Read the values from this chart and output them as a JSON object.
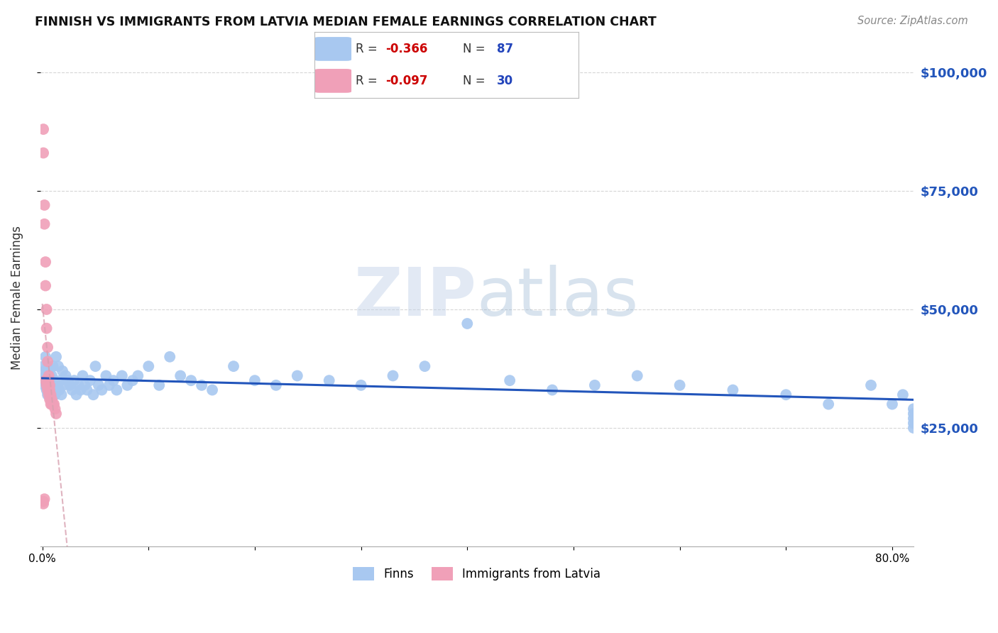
{
  "title": "FINNISH VS IMMIGRANTS FROM LATVIA MEDIAN FEMALE EARNINGS CORRELATION CHART",
  "source": "Source: ZipAtlas.com",
  "ylabel": "Median Female Earnings",
  "ylim": [
    0,
    105000
  ],
  "xlim": [
    -0.002,
    0.82
  ],
  "finns_color": "#A8C8F0",
  "immigrants_color": "#F0A0B8",
  "trendline_finns_color": "#2255BB",
  "trendline_immigrants_color": "#E08090",
  "watermark_text": "ZIPatlas",
  "background_color": "#FFFFFF",
  "grid_color": "#CCCCCC",
  "right_axis_label_color": "#2255BB",
  "title_color": "#111111",
  "source_color": "#888888",
  "finns_x": [
    0.001,
    0.001,
    0.002,
    0.002,
    0.003,
    0.003,
    0.004,
    0.004,
    0.005,
    0.005,
    0.005,
    0.006,
    0.006,
    0.007,
    0.007,
    0.008,
    0.008,
    0.009,
    0.009,
    0.01,
    0.01,
    0.011,
    0.012,
    0.013,
    0.014,
    0.015,
    0.016,
    0.017,
    0.018,
    0.019,
    0.02,
    0.022,
    0.024,
    0.026,
    0.028,
    0.03,
    0.032,
    0.034,
    0.036,
    0.038,
    0.04,
    0.042,
    0.045,
    0.048,
    0.05,
    0.053,
    0.056,
    0.06,
    0.063,
    0.067,
    0.07,
    0.075,
    0.08,
    0.085,
    0.09,
    0.1,
    0.11,
    0.12,
    0.13,
    0.14,
    0.15,
    0.16,
    0.18,
    0.2,
    0.22,
    0.24,
    0.27,
    0.3,
    0.33,
    0.36,
    0.4,
    0.44,
    0.48,
    0.52,
    0.56,
    0.6,
    0.65,
    0.7,
    0.74,
    0.78,
    0.8,
    0.81,
    0.82,
    0.82,
    0.82,
    0.82,
    0.82
  ],
  "finns_y": [
    38000,
    35000,
    37000,
    34000,
    40000,
    36000,
    35000,
    33000,
    38000,
    36000,
    32000,
    37000,
    34000,
    36000,
    33000,
    35000,
    31000,
    36000,
    34000,
    38000,
    33000,
    35000,
    32000,
    40000,
    34000,
    38000,
    33000,
    35000,
    32000,
    37000,
    34000,
    36000,
    35000,
    34000,
    33000,
    35000,
    32000,
    34000,
    33000,
    36000,
    34000,
    33000,
    35000,
    32000,
    38000,
    34000,
    33000,
    36000,
    34000,
    35000,
    33000,
    36000,
    34000,
    35000,
    36000,
    38000,
    34000,
    40000,
    36000,
    35000,
    34000,
    33000,
    38000,
    35000,
    34000,
    36000,
    35000,
    34000,
    36000,
    38000,
    47000,
    35000,
    33000,
    34000,
    36000,
    34000,
    33000,
    32000,
    30000,
    34000,
    30000,
    32000,
    28000,
    29000,
    27000,
    26000,
    25000
  ],
  "immigrants_x": [
    0.001,
    0.001,
    0.002,
    0.002,
    0.003,
    0.003,
    0.004,
    0.004,
    0.005,
    0.005,
    0.006,
    0.006,
    0.007,
    0.007,
    0.008,
    0.009,
    0.01,
    0.011,
    0.012,
    0.013,
    0.001,
    0.001,
    0.002,
    0.003,
    0.004,
    0.005,
    0.006,
    0.007,
    0.008,
    0.009
  ],
  "immigrants_y": [
    88000,
    83000,
    72000,
    68000,
    60000,
    55000,
    50000,
    46000,
    42000,
    39000,
    36000,
    35000,
    34000,
    33000,
    32000,
    31000,
    30000,
    30000,
    29000,
    28000,
    9000,
    9500,
    10000,
    35000,
    34000,
    33000,
    32000,
    31000,
    30000,
    30000
  ]
}
